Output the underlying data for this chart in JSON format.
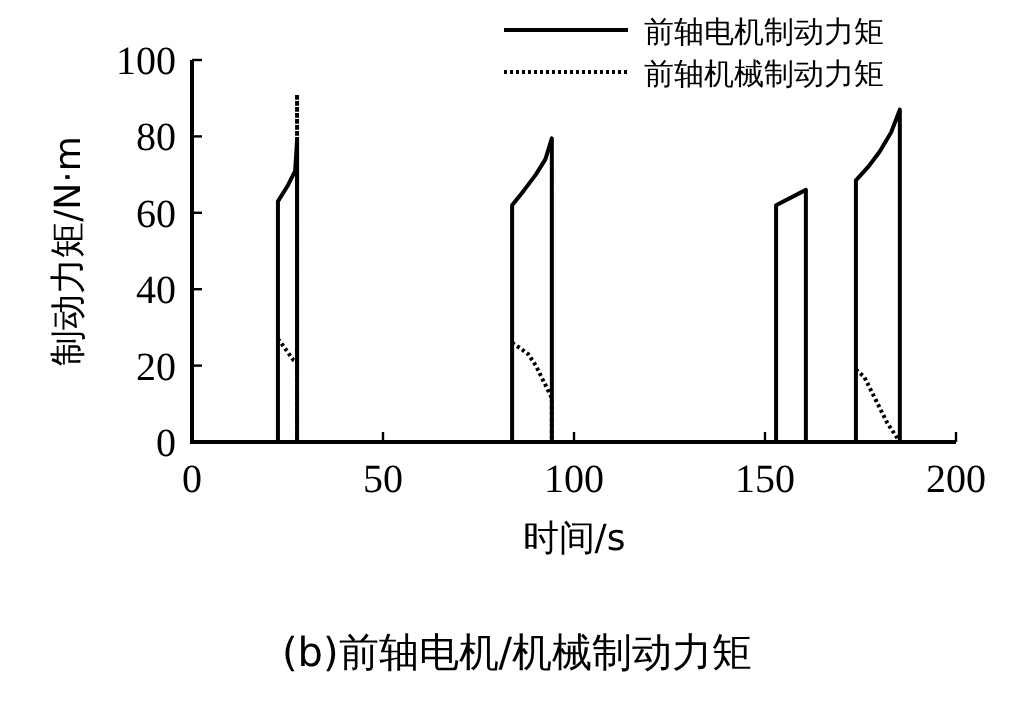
{
  "chart_data": {
    "type": "line",
    "title": "(b)前轴电机/机械制动力矩",
    "xlabel": "时间/s",
    "ylabel": "制动力矩/N·m",
    "xlim": [
      0,
      200
    ],
    "ylim": [
      0,
      100
    ],
    "xticks": [
      0,
      50,
      100,
      150,
      200
    ],
    "yticks": [
      0,
      20,
      40,
      60,
      80,
      100
    ],
    "grid": false,
    "legend": "top right",
    "series": [
      {
        "name": "前轴电机制动力矩",
        "color": "#000000",
        "line_style": "solid",
        "x": [
          0,
          22.5,
          22.5,
          25,
          27,
          27.5,
          27.5,
          83.8,
          83.8,
          87,
          90,
          92.5,
          94.2,
          94.2,
          152.9,
          152.9,
          160.7,
          160.7,
          173.8,
          173.8,
          177,
          180,
          183,
          185.3,
          185.3,
          200
        ],
        "values": [
          0,
          0,
          63,
          67,
          71,
          79,
          0,
          0,
          62,
          66,
          70,
          74,
          79.5,
          0,
          0,
          62,
          66,
          0,
          0,
          68.5,
          72,
          76,
          81,
          87,
          0,
          0
        ]
      },
      {
        "name": "前轴机械制动力矩",
        "color": "#000000",
        "line_style": "dotted",
        "x": [
          22.5,
          24,
          26.5,
          27.5,
          27.5,
          27.5,
          null,
          83.8,
          86,
          88,
          90,
          94.2,
          94.2,
          null,
          173.8,
          176,
          179,
          182,
          185.3
        ],
        "values": [
          27,
          25,
          21.5,
          21,
          91,
          0,
          null,
          26,
          24.5,
          23,
          20,
          11.5,
          0,
          null,
          19,
          17,
          11,
          5,
          0
        ]
      }
    ]
  }
}
